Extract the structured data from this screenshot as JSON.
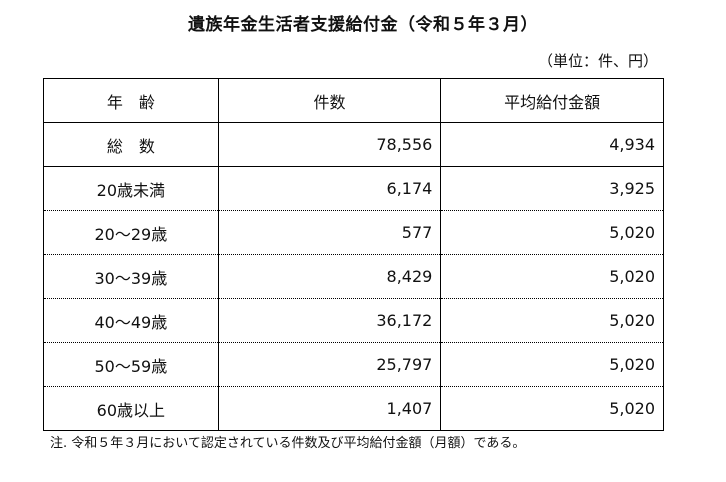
{
  "title": "遺族年金生活者支援給付金（令和５年３月）",
  "unit": "（単位：件、円）",
  "table": {
    "headers": [
      "年　齢",
      "件数",
      "平均給付金額"
    ],
    "total": {
      "label": "総　数",
      "count": "78,556",
      "avg": "4,934"
    },
    "rows": [
      {
        "label": "20歳未満",
        "count": "6,174",
        "avg": "3,925"
      },
      {
        "label": "20～29歳",
        "count": "577",
        "avg": "5,020"
      },
      {
        "label": "30～39歳",
        "count": "8,429",
        "avg": "5,020"
      },
      {
        "label": "40～49歳",
        "count": "36,172",
        "avg": "5,020"
      },
      {
        "label": "50～59歳",
        "count": "25,797",
        "avg": "5,020"
      },
      {
        "label": "60歳以上",
        "count": "1,407",
        "avg": "5,020"
      }
    ]
  },
  "note": "注.  令和５年３月において認定されている件数及び平均給付金額（月額）である。"
}
